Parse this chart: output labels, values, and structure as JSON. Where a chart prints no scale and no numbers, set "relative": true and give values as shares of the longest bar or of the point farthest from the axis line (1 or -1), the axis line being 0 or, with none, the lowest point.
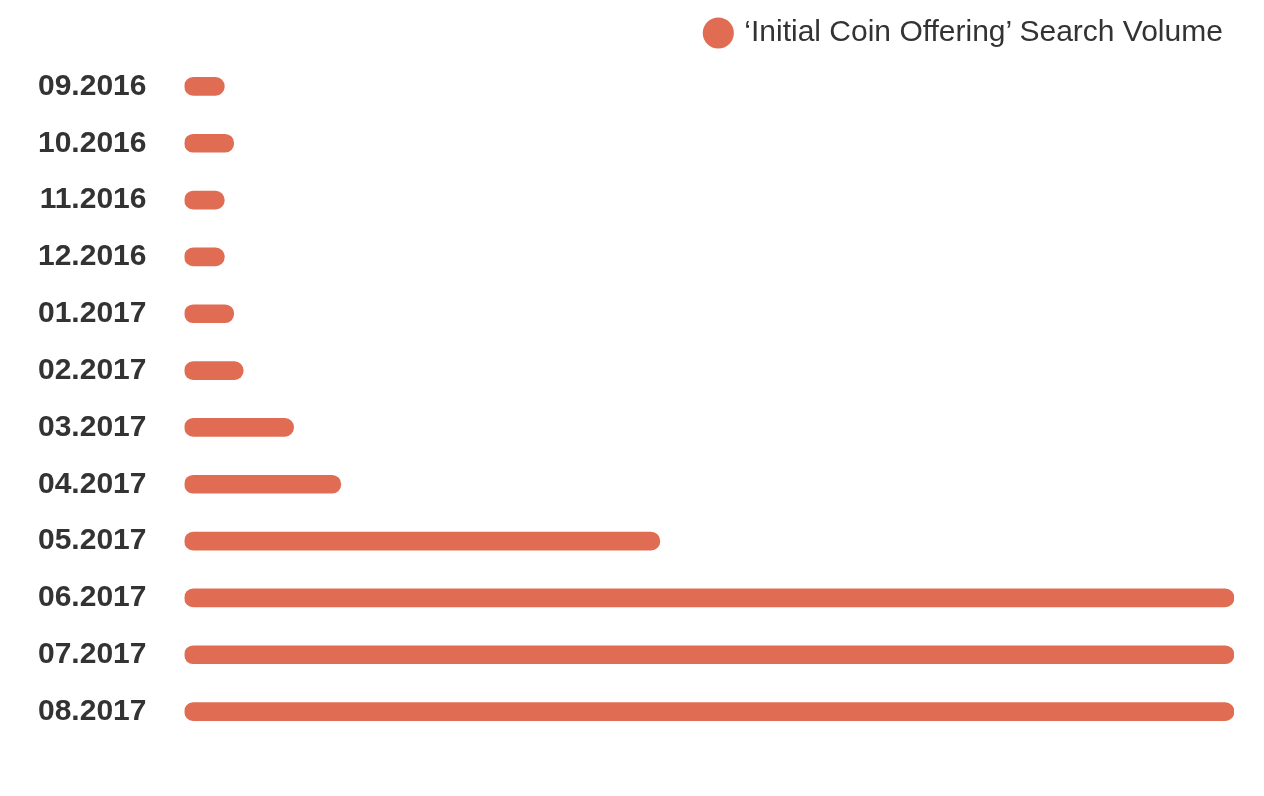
{
  "chart_data": {
    "type": "bar",
    "orientation": "horizontal",
    "relative": true,
    "legend": "top right",
    "categories": [
      "09.2016",
      "10.2016",
      "11.2016",
      "12.2016",
      "01.2017",
      "02.2017",
      "03.2017",
      "04.2017",
      "05.2017",
      "06.2017",
      "07.2017",
      "08.2017"
    ],
    "series": [
      {
        "name": "‘Initial Coin Offering’ Search Volume",
        "color": "#e06c54",
        "values": [
          0.038,
          0.047,
          0.038,
          0.038,
          0.047,
          0.056,
          0.104,
          0.149,
          0.453,
          1,
          1,
          1
        ]
      }
    ]
  }
}
